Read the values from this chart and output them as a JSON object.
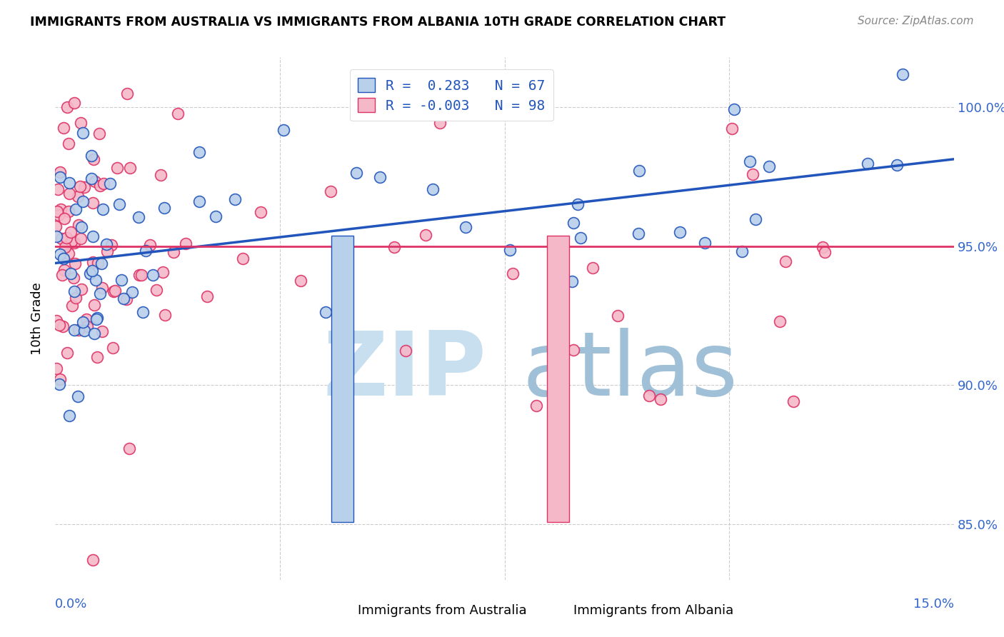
{
  "title": "IMMIGRANTS FROM AUSTRALIA VS IMMIGRANTS FROM ALBANIA 10TH GRADE CORRELATION CHART",
  "source": "Source: ZipAtlas.com",
  "ylabel": "10th Grade",
  "xmin": 0.0,
  "xmax": 15.0,
  "ymin": 83.0,
  "ymax": 101.8,
  "r_australia": 0.283,
  "n_australia": 67,
  "r_albania": -0.003,
  "n_albania": 98,
  "scatter_color_australia": "#b8d0ea",
  "scatter_color_albania": "#f5b8c8",
  "line_color_australia": "#2255bb",
  "line_color_albania": "#dd3366",
  "watermark_zip": "ZIP",
  "watermark_atlas": "atlas",
  "watermark_color_zip": "#c8dff0",
  "watermark_color_atlas": "#a0c0d8",
  "legend_label_australia": "Immigrants from Australia",
  "legend_label_albania": "Immigrants from Albania",
  "ytick_vals": [
    85.0,
    90.0,
    95.0,
    100.0
  ],
  "grid_color": "#cccccc",
  "title_fontsize": 12.5,
  "source_fontsize": 11
}
